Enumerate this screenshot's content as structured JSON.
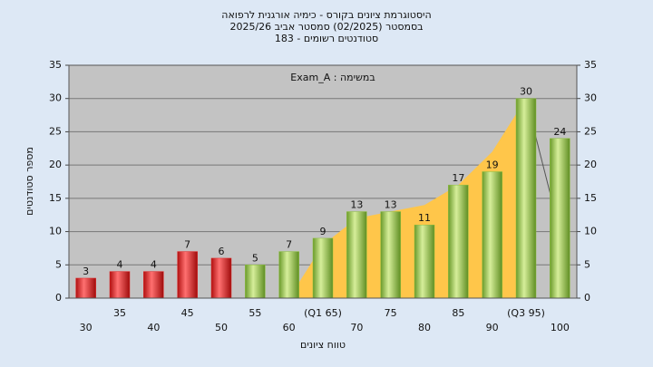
{
  "chart_data": {
    "type": "bar",
    "title": [
      "היסטוגרמת ציונים בקורס - כימיה אורגנית לרפואה",
      "בסמסטר (02/2025) סמסטר אביב 2025/26",
      "סטודנטים רשומים - 183"
    ],
    "annotation": "במשימה : Exam_A",
    "x_label": "טווח ציונים",
    "y_label": "מספר סטודנטים",
    "categories": [
      "30",
      "35",
      "40",
      "45",
      "50",
      "55",
      "60",
      "(Q1 65)",
      "70",
      "75",
      "80",
      "85",
      "90",
      "(Q3 95)",
      "100"
    ],
    "values": [
      3,
      4,
      4,
      7,
      6,
      5,
      7,
      9,
      13,
      13,
      11,
      17,
      19,
      30,
      24
    ],
    "colors": [
      "#e02626",
      "#e02626",
      "#e02626",
      "#e02626",
      "#e02626",
      "#8cbf3f",
      "#8cbf3f",
      "#8cbf3f",
      "#8cbf3f",
      "#8cbf3f",
      "#8cbf3f",
      "#8cbf3f",
      "#8cbf3f",
      "#8cbf3f",
      "#8cbf3f"
    ],
    "overlay": {
      "color": "#ffc64a",
      "values": [
        null,
        null,
        null,
        null,
        null,
        null,
        0,
        8,
        12,
        13,
        14,
        17,
        22,
        30,
        10
      ]
    },
    "ylim": [
      0,
      35
    ],
    "yticks": [
      0,
      5,
      10,
      15,
      20,
      25,
      30,
      35
    ],
    "y2lim": [
      0,
      35
    ],
    "y2ticks": [
      0,
      5,
      10,
      15,
      20,
      25,
      30,
      35
    ],
    "grid": true
  }
}
